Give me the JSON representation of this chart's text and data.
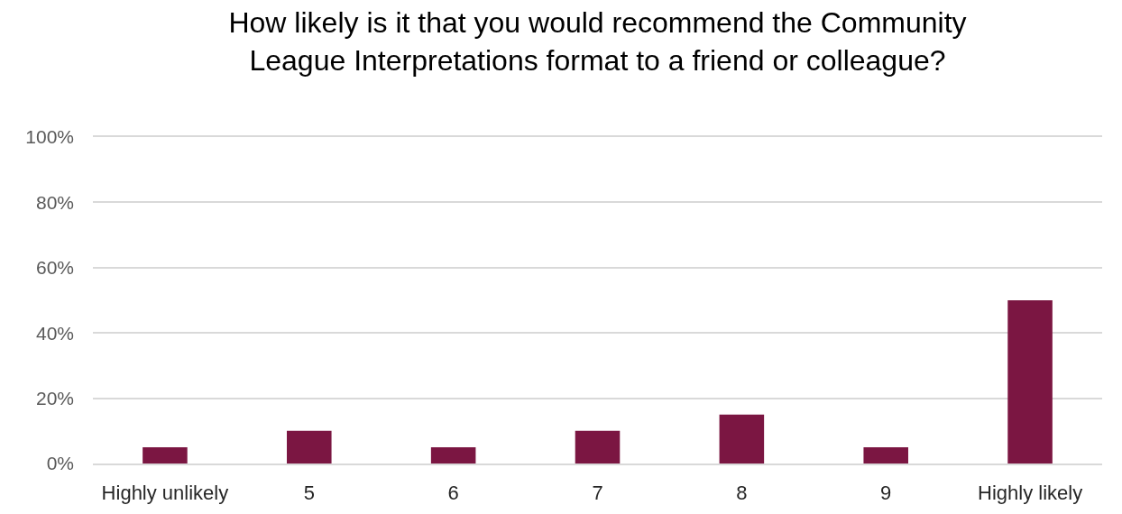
{
  "chart_data": {
    "type": "bar",
    "title": "How likely is it that you would recommend the Community League Interpretations format to a friend or colleague?",
    "categories": [
      "Highly unlikely",
      "5",
      "6",
      "7",
      "8",
      "9",
      "Highly likely"
    ],
    "values": [
      5,
      10,
      5,
      10,
      15,
      5,
      50
    ],
    "color": "#7b1642",
    "ylim": [
      0,
      100
    ],
    "yticks": [
      {
        "value": 0,
        "label": "0%"
      },
      {
        "value": 20,
        "label": "20%"
      },
      {
        "value": 40,
        "label": "40%"
      },
      {
        "value": 60,
        "label": "60%"
      },
      {
        "value": 80,
        "label": "80%"
      },
      {
        "value": 100,
        "label": "100%"
      }
    ],
    "grid": "y"
  }
}
